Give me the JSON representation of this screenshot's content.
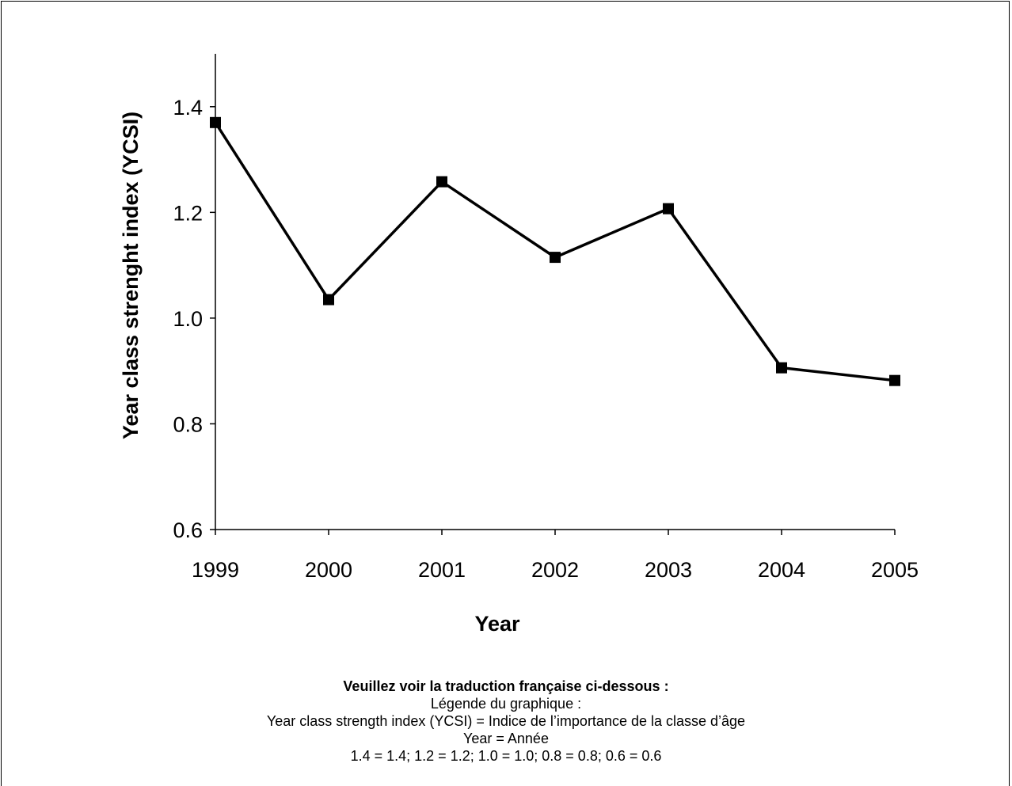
{
  "chart_data": {
    "type": "line",
    "x": [
      1999,
      2000,
      2001,
      2002,
      2003,
      2004,
      2005
    ],
    "series": [
      {
        "values": [
          1.37,
          1.035,
          1.258,
          1.115,
          1.207,
          0.906,
          0.882
        ],
        "marker": "square",
        "color": "#000000"
      }
    ],
    "xlabel": "Year",
    "ylabel": "Year class strenght index (YCSI)",
    "ylim": [
      0.6,
      1.5
    ],
    "yticks": [
      0.6,
      0.8,
      1.0,
      1.2,
      1.4
    ],
    "ytick_labels": [
      "0.6",
      "0.8",
      "1.0",
      "1.2",
      "1.4"
    ],
    "xtick_labels": [
      "1999",
      "2000",
      "2001",
      "2002",
      "2003",
      "2004",
      "2005"
    ],
    "grid": false
  },
  "caption": {
    "title": "Veuillez voir la traduction française ci-dessous :",
    "lines": [
      "Légende du graphique :",
      "Year class strength index (YCSI) = Indice de l’importance de la classe d’âge",
      "Year = Année",
      "1.4 = 1.4; 1.2 = 1.2; 1.0 = 1.0; 0.8 = 0.8; 0.6 = 0.6"
    ]
  }
}
